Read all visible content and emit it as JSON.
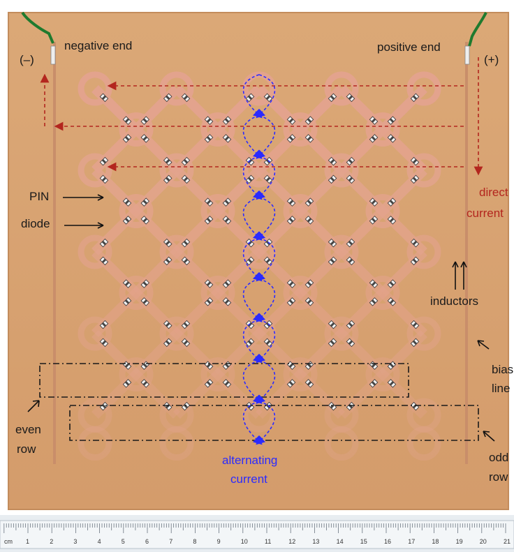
{
  "labels": {
    "negative_end": "negative end",
    "negative_sign": "(–)",
    "positive_end": "positive end",
    "positive_sign": "(+)",
    "pin": "PIN",
    "diode": "diode",
    "direct": "direct",
    "current_dc": "current",
    "inductors": "inductors",
    "bias": "bias",
    "line": "line",
    "even": "even",
    "row_even": "row",
    "odd": "odd",
    "row_odd": "row",
    "alternating": "alternating",
    "current_ac": "current"
  },
  "ruler": {
    "unit": "cm",
    "ticks": [
      "1",
      "2",
      "3",
      "4",
      "5",
      "6",
      "7",
      "8",
      "9",
      "10",
      "11",
      "12",
      "13",
      "14",
      "15",
      "16",
      "17",
      "18",
      "19",
      "20",
      "21"
    ]
  },
  "colors": {
    "board": "#d9a273",
    "copper": "#e3a38d",
    "dc_arrow": "#b3261e",
    "ac_arrow": "#2b2bff"
  }
}
